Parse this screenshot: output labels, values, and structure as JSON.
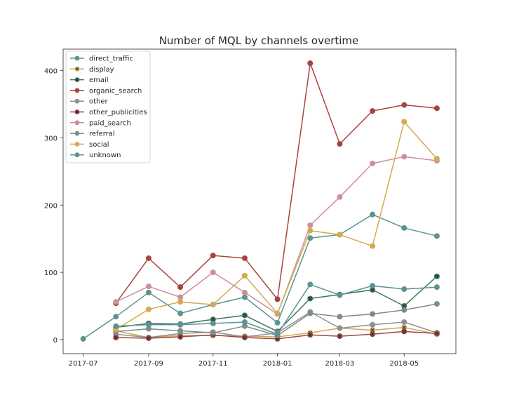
{
  "chart_data": {
    "type": "line",
    "title": "Number of MQL by channels overtime",
    "xlabel": "",
    "ylabel": "",
    "ylim": [
      -21,
      432
    ],
    "xlim": [
      "2017-06-12",
      "2018-06-19"
    ],
    "yticks": [
      0,
      100,
      200,
      300,
      400
    ],
    "xticks": [
      {
        "date": "2017-07-01",
        "label": "2017-07"
      },
      {
        "date": "2017-09-01",
        "label": "2017-09"
      },
      {
        "date": "2017-11-01",
        "label": "2017-11"
      },
      {
        "date": "2018-01-01",
        "label": "2018-01"
      },
      {
        "date": "2018-03-01",
        "label": "2018-03"
      },
      {
        "date": "2018-05-01",
        "label": "2018-05"
      }
    ],
    "x": [
      "2017-07-01",
      "2017-08-01",
      "2017-09-01",
      "2017-10-01",
      "2017-11-01",
      "2017-12-01",
      "2018-01-01",
      "2018-02-01",
      "2018-03-01",
      "2018-04-01",
      "2018-05-01",
      "2018-06-01"
    ],
    "grid": false,
    "legend_position": "top-left",
    "series": [
      {
        "name": "direct_traffic",
        "color": "#5b9490",
        "marker": "circle",
        "values": [
          1,
          34,
          70,
          39,
          52,
          63,
          25,
          151,
          156,
          186,
          166,
          154
        ]
      },
      {
        "name": "display",
        "color": "#cfa94e",
        "marker": "x-circle",
        "values": [
          null,
          13,
          3,
          6,
          6,
          5,
          4,
          10,
          17,
          14,
          18,
          8
        ]
      },
      {
        "name": "email",
        "color": "#3d7565",
        "marker": "x-circle",
        "values": [
          null,
          18,
          24,
          23,
          30,
          36,
          12,
          61,
          67,
          74,
          50,
          94
        ]
      },
      {
        "name": "organic_search",
        "color": "#a8443d",
        "marker": "circle",
        "values": [
          null,
          54,
          121,
          78,
          125,
          121,
          60,
          411,
          291,
          340,
          349,
          344
        ]
      },
      {
        "name": "other",
        "color": "#909090",
        "marker": "circle",
        "values": [
          null,
          8,
          3,
          9,
          11,
          4,
          10,
          41,
          17,
          22,
          26,
          10
        ]
      },
      {
        "name": "other_publicities",
        "color": "#a04545",
        "marker": "x-circle",
        "values": [
          null,
          3,
          2,
          4,
          7,
          3,
          1,
          7,
          5,
          8,
          12,
          9
        ]
      },
      {
        "name": "paid_search",
        "color": "#cd8e9b",
        "marker": "circle",
        "values": [
          null,
          56,
          79,
          63,
          100,
          70,
          38,
          170,
          212,
          262,
          272,
          266
        ]
      },
      {
        "name": "referral",
        "color": "#7d8c88",
        "marker": "circle",
        "values": [
          null,
          12,
          16,
          13,
          10,
          20,
          6,
          39,
          34,
          38,
          44,
          53
        ]
      },
      {
        "name": "social",
        "color": "#d4aa4e",
        "marker": "circle",
        "values": [
          null,
          15,
          45,
          56,
          52,
          95,
          39,
          162,
          156,
          139,
          324,
          269
        ]
      },
      {
        "name": "unknown",
        "color": "#5b9490",
        "marker": "circle",
        "values": [
          null,
          20,
          22,
          22,
          24,
          26,
          8,
          82,
          66,
          80,
          75,
          78
        ]
      }
    ]
  }
}
